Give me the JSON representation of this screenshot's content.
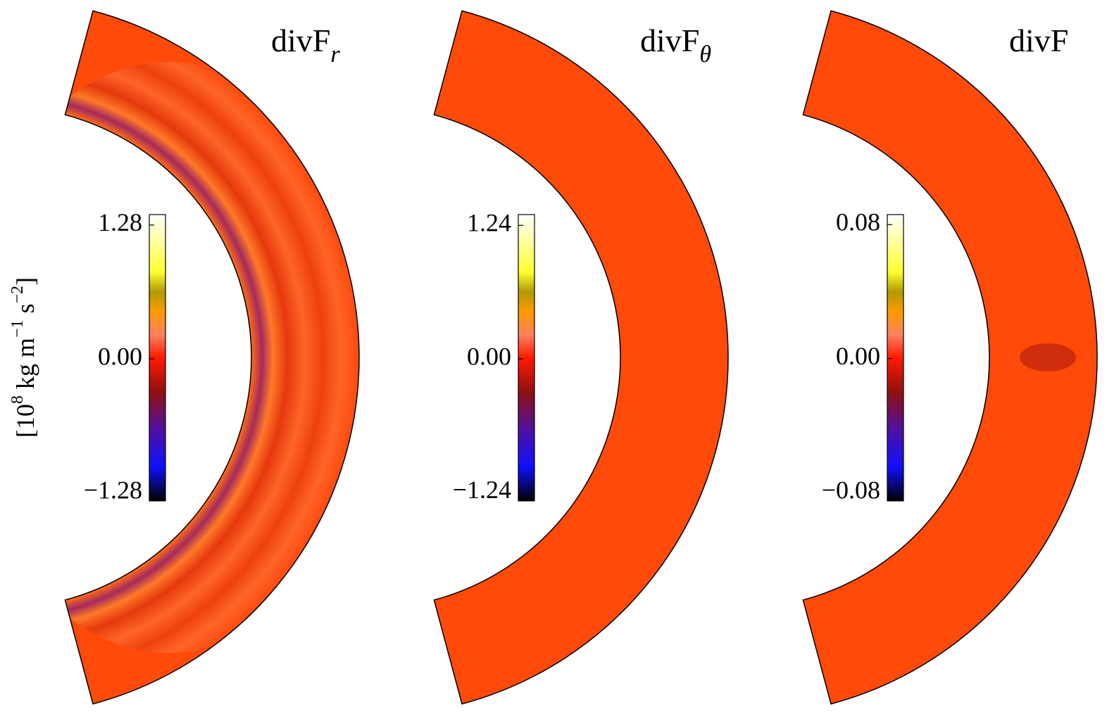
{
  "chart_data": [
    {
      "type": "heatmap",
      "title": {
        "main": "divF",
        "sub": "r"
      },
      "ylim": [
        -1.36,
        1.38
      ],
      "yticks": [
        {
          "value": 1.28,
          "label": "1.28"
        },
        {
          "value": 0,
          "label": "0.00"
        },
        {
          "value": -1.28,
          "label": "−1.28"
        }
      ]
    },
    {
      "type": "heatmap",
      "title": {
        "main": "divF",
        "sub": "θ"
      },
      "ylim": [
        -1.32,
        1.34
      ],
      "yticks": [
        {
          "value": 1.24,
          "label": "1.24"
        },
        {
          "value": 0,
          "label": "0.00"
        },
        {
          "value": -1.24,
          "label": "−1.24"
        }
      ]
    },
    {
      "type": "heatmap",
      "title": {
        "main": "divF"
      },
      "ylim": [
        -0.085,
        0.086
      ],
      "yticks": [
        {
          "value": 0.08,
          "label": "0.08"
        },
        {
          "value": 0,
          "label": "0.00"
        },
        {
          "value": -0.08,
          "label": "−0.08"
        }
      ]
    }
  ],
  "colorbar_label": {
    "open": "[10",
    "exp1": "8",
    "mid1": " kg m",
    "exp2": "−1",
    "mid2": " s",
    "exp3": "−2",
    "close": "]"
  }
}
